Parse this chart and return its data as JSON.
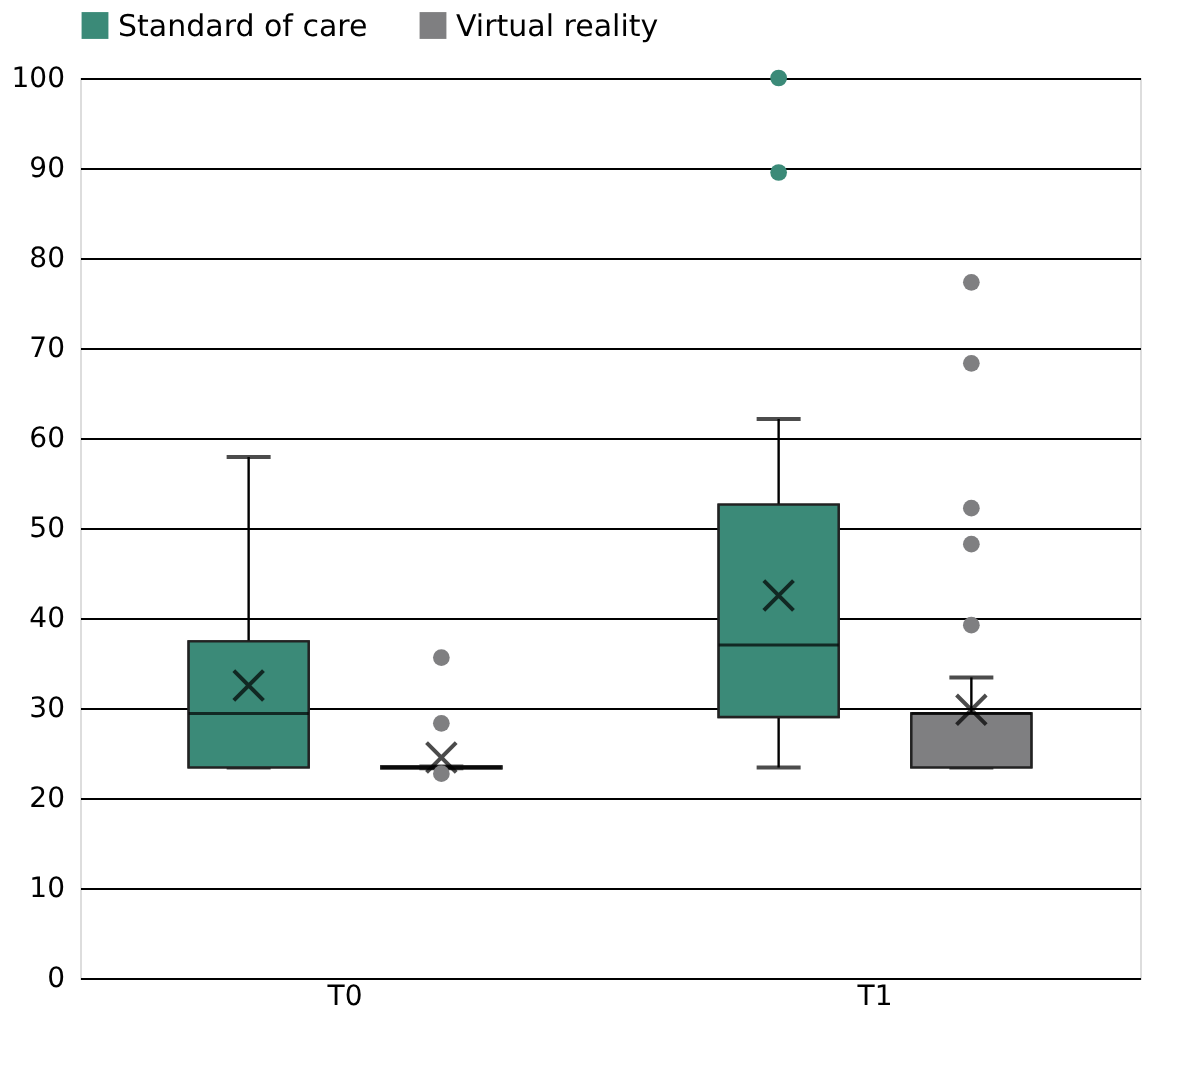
{
  "chart_data": {
    "type": "box",
    "categories": [
      "T0",
      "T1"
    ],
    "series": [
      {
        "name": "Standard of care",
        "color": "#3b8a78",
        "boxes": [
          {
            "low": 23.4,
            "q1": 23.4,
            "median": 29.4,
            "q3": 37.4,
            "high": 57.9,
            "mean": 32.5
          },
          {
            "low": 23.4,
            "q1": 29.0,
            "median": 37.0,
            "q3": 52.6,
            "high": 62.1,
            "mean": 42.5,
            "outliers": [
              89.5,
              100
            ]
          }
        ]
      },
      {
        "name": "Virtual reality",
        "color": "#7f7f81",
        "boxes": [
          {
            "low": 23.3,
            "q1": 23.3,
            "median": 23.4,
            "q3": 23.5,
            "high": 23.5,
            "mean": 24.5,
            "outliers": [
              22.7,
              28.3,
              35.6
            ]
          },
          {
            "low": 23.4,
            "q1": 23.4,
            "median": 29.4,
            "q3": 29.4,
            "high": 33.4,
            "mean": 29.8,
            "outliers": [
              39.2,
              48.2,
              52.2,
              68.3,
              77.3
            ]
          }
        ]
      }
    ],
    "ylim": [
      0,
      100
    ],
    "yticks": [
      0,
      10,
      20,
      30,
      40,
      50,
      60,
      70,
      80,
      90,
      100
    ],
    "grid": "y",
    "legend": "top"
  }
}
